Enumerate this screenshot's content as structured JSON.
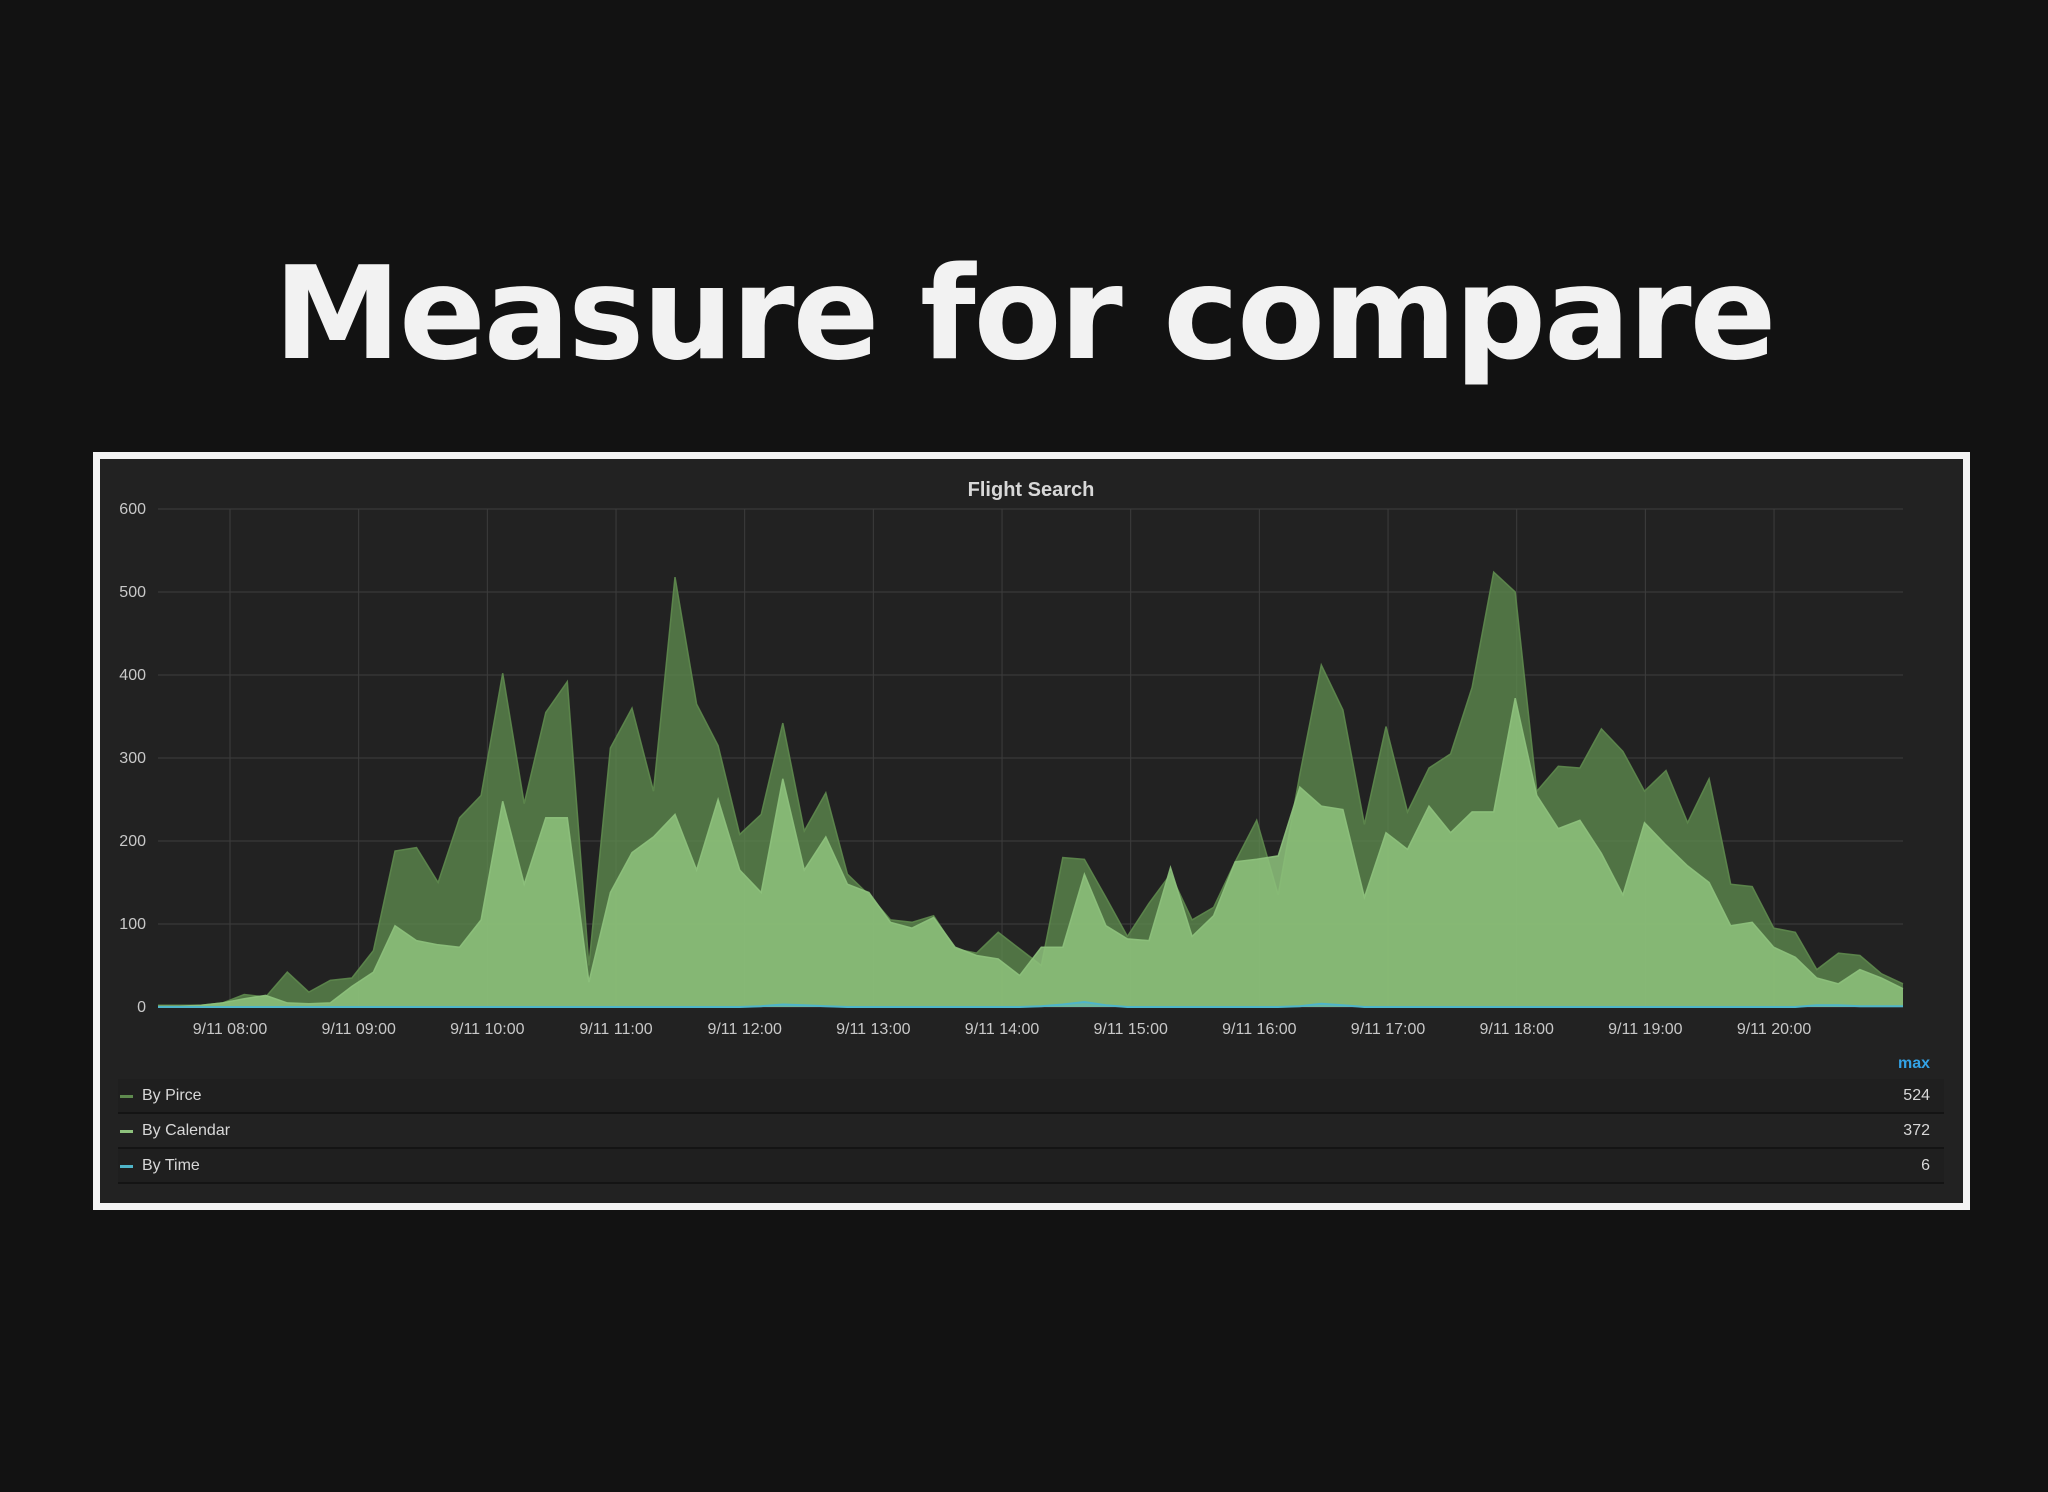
{
  "slide": {
    "title": "Measure for compare"
  },
  "panel": {
    "legend_header": "max",
    "legend": [
      {
        "name": "By Pirce",
        "value": "524",
        "color": "#5e8a4e"
      },
      {
        "name": "By Calendar",
        "value": "372",
        "color": "#8ec27d"
      },
      {
        "name": "By Time",
        "value": "6",
        "color": "#4fb5c9"
      }
    ]
  },
  "chart_data": {
    "type": "area",
    "title": "Flight Search",
    "xlabel": "",
    "ylabel": "",
    "ylim": [
      0,
      600
    ],
    "yticks": [
      0,
      100,
      200,
      300,
      400,
      500,
      600
    ],
    "xticks": [
      "9/11 08:00",
      "9/11 09:00",
      "9/11 10:00",
      "9/11 11:00",
      "9/11 12:00",
      "9/11 13:00",
      "9/11 14:00",
      "9/11 15:00",
      "9/11 16:00",
      "9/11 17:00",
      "9/11 18:00",
      "9/11 19:00",
      "9/11 20:00"
    ],
    "x_start": "9/11 07:26",
    "x_step_minutes": 6,
    "grid": true,
    "legend_position": "bottom",
    "series": [
      {
        "name": "By Pirce",
        "color": "#5e8a4e",
        "values": [
          2,
          2,
          2,
          5,
          15,
          12,
          42,
          18,
          32,
          35,
          68,
          188,
          192,
          150,
          228,
          255,
          402,
          245,
          355,
          392,
          50,
          312,
          360,
          260,
          518,
          365,
          315,
          208,
          232,
          342,
          212,
          258,
          160,
          135,
          105,
          102,
          110,
          70,
          65,
          90,
          70,
          50,
          180,
          178,
          132,
          85,
          125,
          160,
          105,
          120,
          175,
          225,
          135,
          280,
          412,
          358,
          220,
          338,
          235,
          288,
          305,
          385,
          524,
          500,
          260,
          290,
          288,
          335,
          308,
          260,
          285,
          222,
          275,
          148,
          145,
          95,
          90,
          45,
          65,
          62,
          40,
          28
        ]
      },
      {
        "name": "By Calendar",
        "color": "#8ec27d",
        "values": [
          1,
          1,
          2,
          5,
          10,
          14,
          5,
          4,
          5,
          25,
          42,
          98,
          80,
          75,
          72,
          105,
          248,
          148,
          228,
          228,
          30,
          138,
          186,
          205,
          232,
          165,
          250,
          165,
          138,
          275,
          165,
          205,
          148,
          138,
          102,
          95,
          108,
          72,
          62,
          58,
          38,
          72,
          72,
          160,
          98,
          82,
          80,
          168,
          85,
          110,
          175,
          178,
          182,
          265,
          242,
          238,
          132,
          210,
          190,
          242,
          210,
          235,
          235,
          372,
          255,
          215,
          225,
          185,
          135,
          222,
          195,
          170,
          150,
          98,
          102,
          72,
          60,
          35,
          28,
          45,
          35,
          22
        ]
      },
      {
        "name": "By Time",
        "color": "#4fb5c9",
        "values": [
          0,
          0,
          0,
          0,
          0,
          0,
          0,
          0,
          0,
          0,
          0,
          0,
          0,
          0,
          0,
          0,
          0,
          0,
          0,
          0,
          0,
          0,
          0,
          0,
          0,
          0,
          0,
          0,
          1,
          3,
          2,
          1,
          0,
          0,
          0,
          0,
          0,
          0,
          0,
          0,
          0,
          1,
          3,
          6,
          2,
          0,
          0,
          0,
          0,
          0,
          0,
          0,
          0,
          1,
          4,
          2,
          0,
          0,
          0,
          0,
          0,
          0,
          0,
          0,
          0,
          0,
          0,
          0,
          0,
          0,
          0,
          0,
          0,
          0,
          0,
          0,
          0,
          2,
          2,
          1,
          1,
          1
        ]
      }
    ]
  }
}
